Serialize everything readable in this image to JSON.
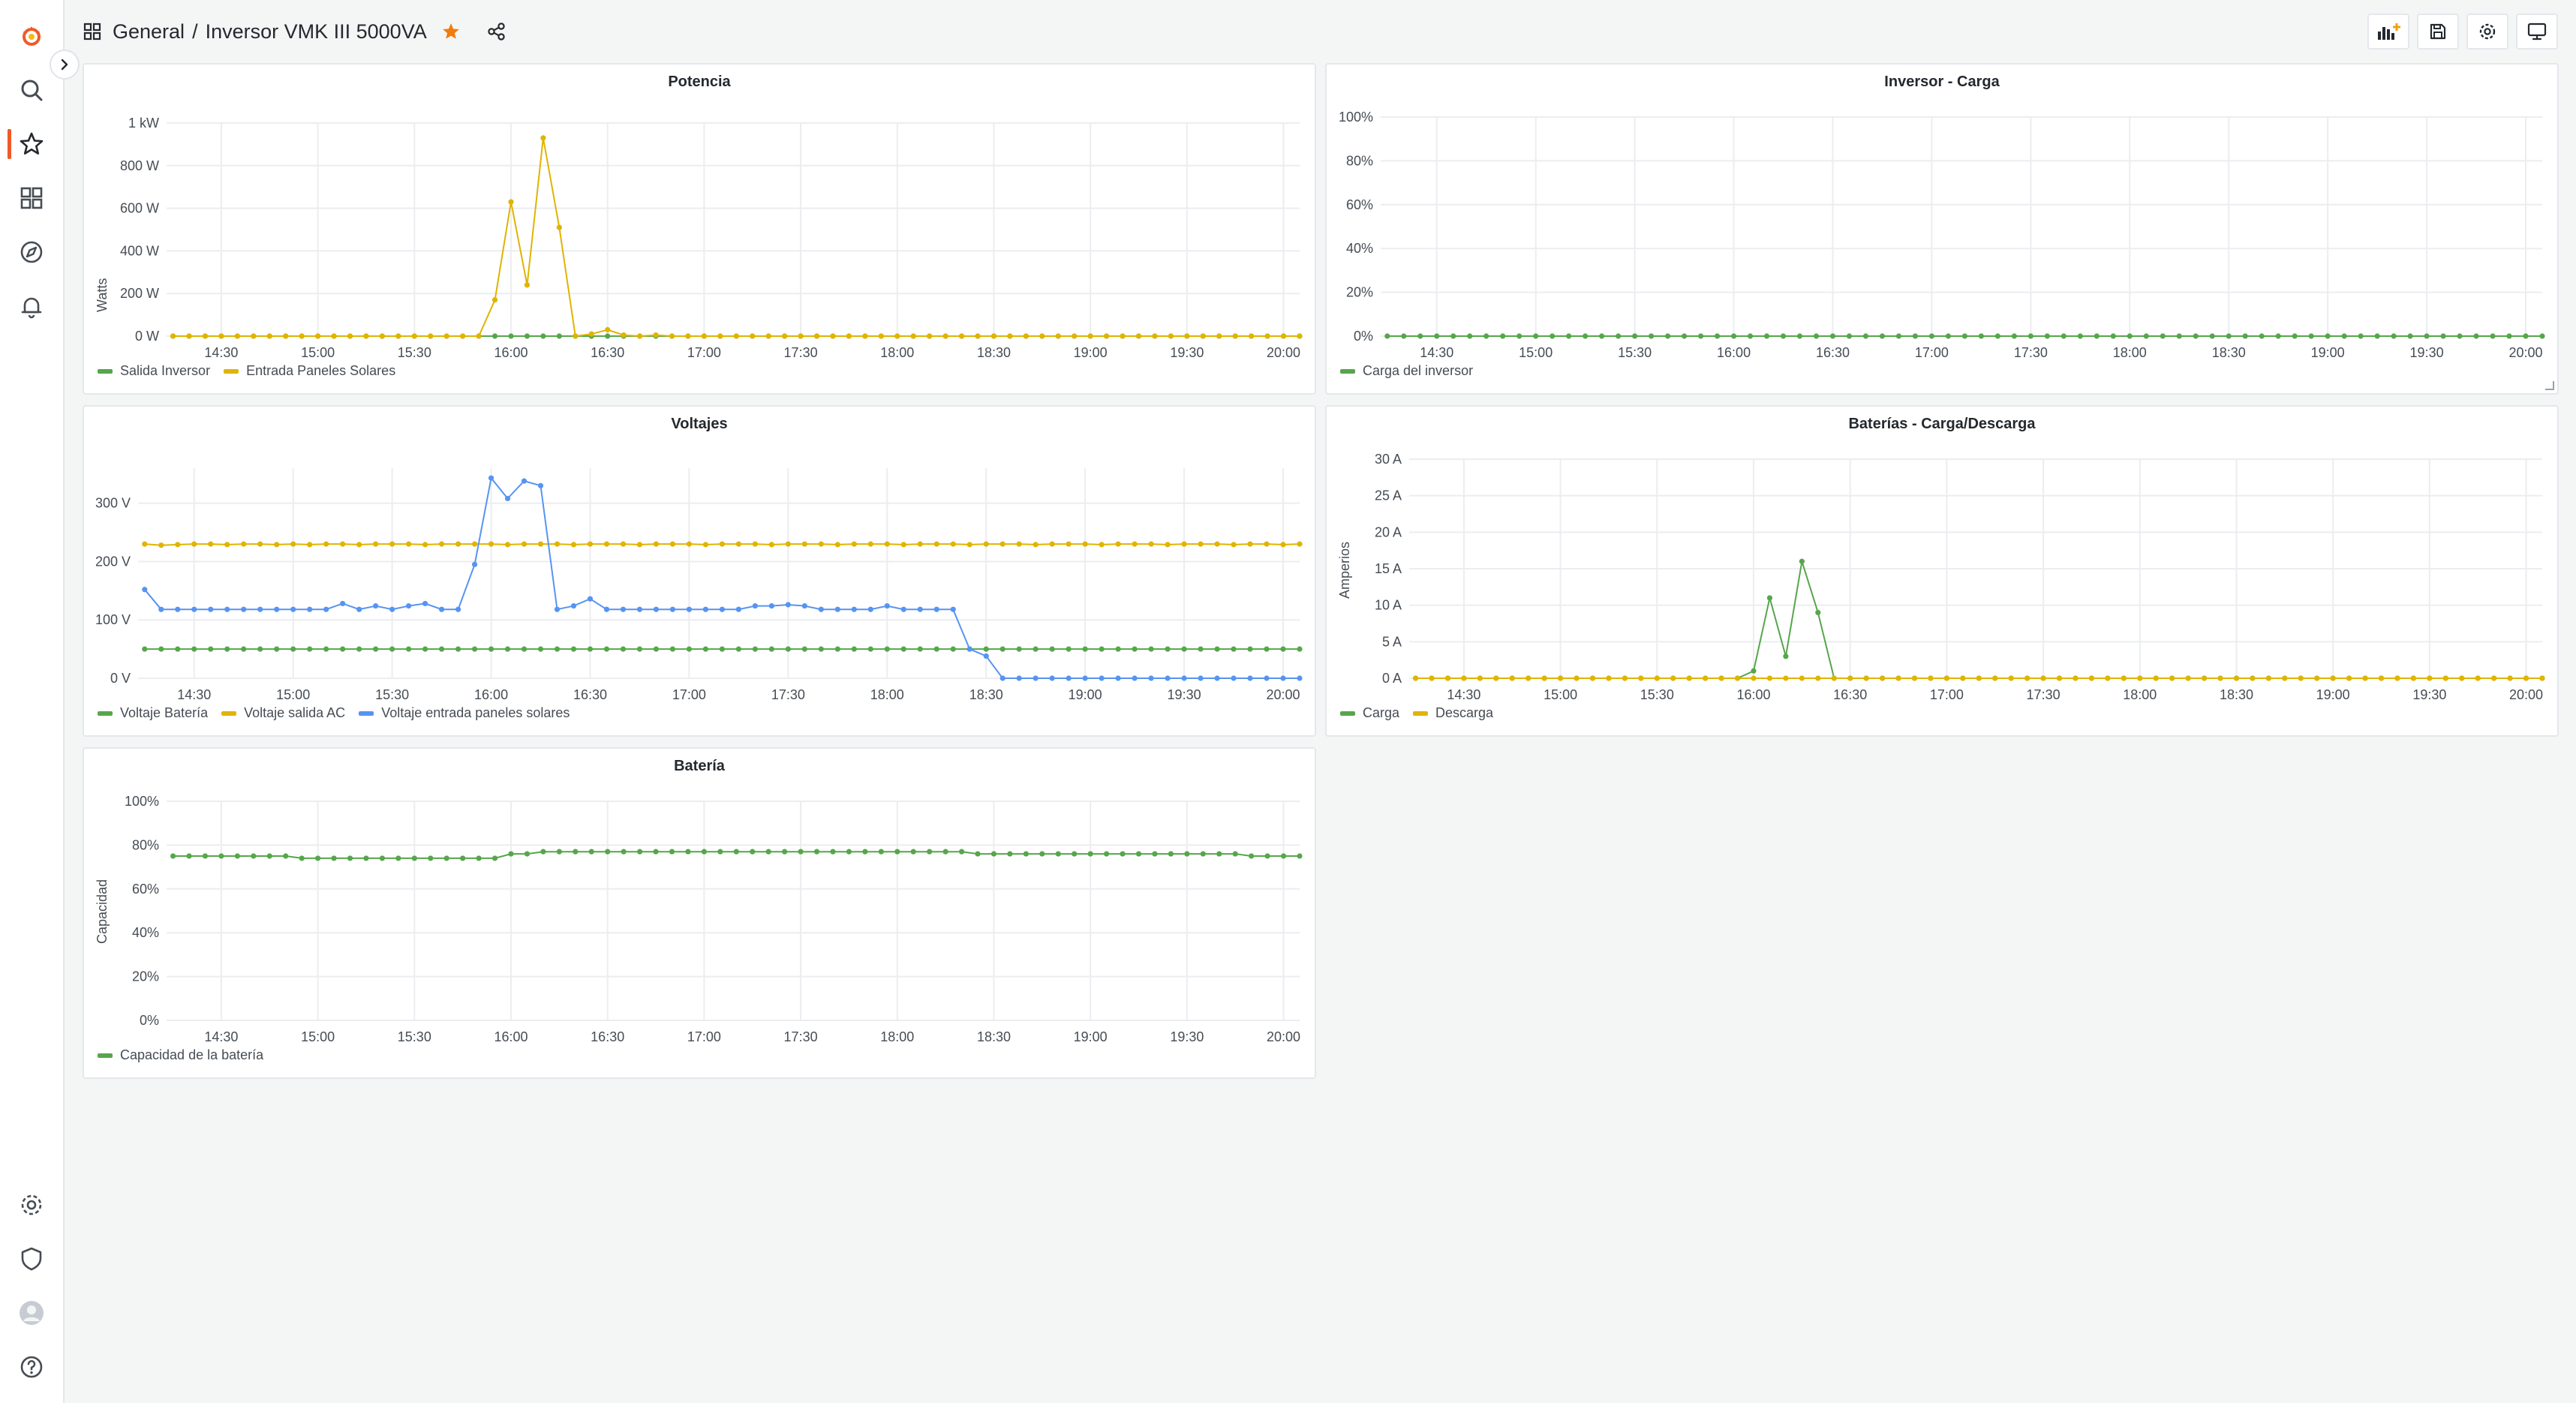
{
  "breadcrumb": {
    "folder": "General",
    "separator": "/",
    "dashboard": "Inversor VMK III 5000VA"
  },
  "sidebar": {
    "icons": [
      "grafana-logo-icon",
      "search-icon",
      "starred-icon",
      "dashboards-icon",
      "explore-icon",
      "alerting-icon",
      "configuration-icon",
      "server-admin-icon",
      "user-avatar-icon",
      "help-icon"
    ],
    "active": "starred-icon"
  },
  "toolbar": {
    "icons": [
      "add-panel-icon",
      "save-dashboard-icon",
      "dashboard-settings-icon",
      "tv-mode-icon"
    ]
  },
  "colors": {
    "green": "#56a64b",
    "yellow": "#e0b400",
    "blue": "#5794f2",
    "accent": "#f05a28",
    "star": "#f27b0e"
  },
  "panels": [
    {
      "id": "potencia",
      "title": "Potencia",
      "ylabel": "Watts",
      "legend": [
        {
          "name": "Salida Inversor",
          "color": "#56a64b"
        },
        {
          "name": "Entrada Paneles Solares",
          "color": "#e0b400"
        }
      ]
    },
    {
      "id": "carga",
      "title": "Inversor - Carga",
      "ylabel": "",
      "legend": [
        {
          "name": "Carga del inversor",
          "color": "#56a64b"
        }
      ]
    },
    {
      "id": "voltajes",
      "title": "Voltajes",
      "ylabel": "",
      "legend": [
        {
          "name": "Voltaje Batería",
          "color": "#56a64b"
        },
        {
          "name": "Voltaje salida AC",
          "color": "#e0b400"
        },
        {
          "name": "Voltaje entrada paneles solares",
          "color": "#5794f2"
        }
      ]
    },
    {
      "id": "baterias",
      "title": "Baterías - Carga/Descarga",
      "ylabel": "Amperios",
      "legend": [
        {
          "name": "Carga",
          "color": "#56a64b"
        },
        {
          "name": "Descarga",
          "color": "#e0b400"
        }
      ]
    },
    {
      "id": "bateria",
      "title": "Batería",
      "ylabel": "Capacidad",
      "legend": [
        {
          "name": "Capacidad de la batería",
          "color": "#56a64b"
        }
      ]
    }
  ],
  "chart_data": [
    {
      "panel": "potencia",
      "type": "line",
      "title": "Potencia",
      "ylabel": "Watts",
      "ylim": [
        0,
        1000
      ],
      "yticks": [
        0,
        200,
        400,
        600,
        800,
        1000
      ],
      "ytick_labels": [
        "0 W",
        "200 W",
        "400 W",
        "600 W",
        "800 W",
        "1 kW"
      ],
      "xlim": [
        "14:13",
        "20:05"
      ],
      "xtick_labels": [
        "14:30",
        "15:00",
        "15:30",
        "16:00",
        "16:30",
        "17:00",
        "17:30",
        "18:00",
        "18:30",
        "19:00",
        "19:30",
        "20:00"
      ],
      "grid": true,
      "legend_position": "bottom-left",
      "series": [
        {
          "name": "Salida Inversor",
          "color": "#56a64b",
          "start": "14:15",
          "step_min": 5,
          "values": [
            0,
            0,
            0,
            0,
            0,
            0,
            0,
            0,
            0,
            0,
            0,
            0,
            0,
            0,
            0,
            0,
            0,
            0,
            0,
            0,
            0,
            0,
            0,
            0,
            0,
            0,
            0,
            0,
            0,
            0,
            0,
            0,
            0,
            0,
            0,
            0,
            0,
            0,
            0,
            0,
            0,
            0,
            0,
            0,
            0,
            0,
            0,
            0,
            0,
            0,
            0,
            0,
            0,
            0,
            0,
            0,
            0,
            0,
            0,
            0,
            0,
            0,
            0,
            0,
            0,
            0,
            0,
            0,
            0,
            0,
            0,
            0
          ]
        },
        {
          "name": "Entrada Paneles Solares",
          "color": "#e0b400",
          "start": "14:15",
          "step_min": 5,
          "values": [
            0,
            0,
            0,
            0,
            0,
            0,
            0,
            0,
            0,
            0,
            0,
            0,
            0,
            0,
            0,
            0,
            0,
            0,
            0,
            0,
            170,
            630,
            240,
            930,
            510,
            0,
            10,
            30,
            5,
            0,
            5,
            0,
            0,
            0,
            0,
            0,
            0,
            0,
            0,
            0,
            0,
            0,
            0,
            0,
            0,
            0,
            0,
            0,
            0,
            0,
            0,
            0,
            0,
            0,
            0,
            0,
            0,
            0,
            0,
            0,
            0,
            0,
            0,
            0,
            0,
            0,
            0,
            0,
            0,
            0,
            0,
            0
          ]
        }
      ]
    },
    {
      "panel": "carga",
      "type": "line",
      "title": "Inversor - Carga",
      "ylim": [
        0,
        100
      ],
      "yticks": [
        0,
        20,
        40,
        60,
        80,
        100
      ],
      "ytick_labels": [
        "0%",
        "20%",
        "40%",
        "60%",
        "80%",
        "100%"
      ],
      "xlim": [
        "14:13",
        "20:05"
      ],
      "xtick_labels": [
        "14:30",
        "15:00",
        "15:30",
        "16:00",
        "16:30",
        "17:00",
        "17:30",
        "18:00",
        "18:30",
        "19:00",
        "19:30",
        "20:00"
      ],
      "grid": true,
      "legend_position": "bottom-left",
      "series": [
        {
          "name": "Carga del inversor",
          "color": "#56a64b",
          "start": "14:15",
          "step_min": 5,
          "values": [
            0,
            0,
            0,
            0,
            0,
            0,
            0,
            0,
            0,
            0,
            0,
            0,
            0,
            0,
            0,
            0,
            0,
            0,
            0,
            0,
            0,
            0,
            0,
            0,
            0,
            0,
            0,
            0,
            0,
            0,
            0,
            0,
            0,
            0,
            0,
            0,
            0,
            0,
            0,
            0,
            0,
            0,
            0,
            0,
            0,
            0,
            0,
            0,
            0,
            0,
            0,
            0,
            0,
            0,
            0,
            0,
            0,
            0,
            0,
            0,
            0,
            0,
            0,
            0,
            0,
            0,
            0,
            0,
            0,
            0,
            0,
            0
          ]
        }
      ]
    },
    {
      "panel": "voltajes",
      "type": "line",
      "title": "Voltajes",
      "ylim": [
        0,
        360
      ],
      "yticks": [
        0,
        100,
        200,
        300
      ],
      "ytick_labels": [
        "0 V",
        "100 V",
        "200 V",
        "300 V"
      ],
      "xlim": [
        "14:13",
        "20:05"
      ],
      "xtick_labels": [
        "14:30",
        "15:00",
        "15:30",
        "16:00",
        "16:30",
        "17:00",
        "17:30",
        "18:00",
        "18:30",
        "19:00",
        "19:30",
        "20:00"
      ],
      "grid": true,
      "legend_position": "bottom-left",
      "series": [
        {
          "name": "Voltaje Batería",
          "color": "#56a64b",
          "start": "14:15",
          "step_min": 5,
          "values": [
            50,
            50,
            50,
            50,
            50,
            50,
            50,
            50,
            50,
            50,
            50,
            50,
            50,
            50,
            50,
            50,
            50,
            50,
            50,
            50,
            50,
            50,
            50,
            50,
            50,
            50,
            50,
            50,
            50,
            50,
            50,
            50,
            50,
            50,
            50,
            50,
            50,
            50,
            50,
            50,
            50,
            50,
            50,
            50,
            50,
            50,
            50,
            50,
            50,
            50,
            50,
            50,
            50,
            50,
            50,
            50,
            50,
            50,
            50,
            50,
            50,
            50,
            50,
            50,
            50,
            50,
            50,
            50,
            50,
            50,
            50,
            50
          ]
        },
        {
          "name": "Voltaje salida AC",
          "color": "#e0b400",
          "start": "14:15",
          "step_min": 5,
          "values": [
            230,
            228,
            229,
            230,
            230,
            229,
            230,
            230,
            229,
            230,
            229,
            230,
            230,
            229,
            230,
            230,
            230,
            229,
            230,
            230,
            230,
            230,
            229,
            230,
            230,
            230,
            229,
            230,
            230,
            230,
            229,
            230,
            230,
            230,
            229,
            230,
            230,
            230,
            229,
            230,
            230,
            230,
            229,
            230,
            230,
            230,
            229,
            230,
            230,
            230,
            229,
            230,
            230,
            230,
            229,
            230,
            230,
            230,
            229,
            230,
            230,
            230,
            229,
            230,
            230,
            230,
            229,
            230,
            230,
            229,
            230,
            230
          ]
        },
        {
          "name": "Voltaje entrada paneles solares",
          "color": "#5794f2",
          "start": "14:10",
          "step_min": 5,
          "values": [
            130,
            152,
            118,
            118,
            118,
            118,
            118,
            118,
            118,
            118,
            118,
            118,
            118,
            128,
            118,
            124,
            118,
            124,
            128,
            118,
            118,
            195,
            343,
            308,
            338,
            330,
            118,
            124,
            136,
            118,
            118,
            118,
            118,
            118,
            118,
            118,
            118,
            118,
            124,
            124,
            126,
            124,
            118,
            118,
            118,
            118,
            124,
            118,
            118,
            118,
            118,
            50,
            38,
            0,
            0,
            0,
            0,
            0,
            0,
            0,
            0,
            0,
            0,
            0,
            0,
            0,
            0,
            0,
            0,
            0,
            0,
            0,
            0,
            0
          ]
        }
      ]
    },
    {
      "panel": "baterias",
      "type": "line",
      "title": "Baterías - Carga/Descarga",
      "ylabel": "Amperios",
      "ylim": [
        0,
        30
      ],
      "yticks": [
        0,
        5,
        10,
        15,
        20,
        25,
        30
      ],
      "ytick_labels": [
        "0 A",
        "5 A",
        "10 A",
        "15 A",
        "20 A",
        "25 A",
        "30 A"
      ],
      "xlim": [
        "14:13",
        "20:05"
      ],
      "xtick_labels": [
        "14:30",
        "15:00",
        "15:30",
        "16:00",
        "16:30",
        "17:00",
        "17:30",
        "18:00",
        "18:30",
        "19:00",
        "19:30",
        "20:00"
      ],
      "grid": true,
      "legend_position": "bottom-left",
      "series": [
        {
          "name": "Carga",
          "color": "#56a64b",
          "start": "14:15",
          "step_min": 5,
          "values": [
            0,
            0,
            0,
            0,
            0,
            0,
            0,
            0,
            0,
            0,
            0,
            0,
            0,
            0,
            0,
            0,
            0,
            0,
            0,
            0,
            0,
            1,
            11,
            3,
            16,
            9,
            0,
            0,
            0,
            0,
            0,
            0,
            0,
            0,
            0,
            0,
            0,
            0,
            0,
            0,
            0,
            0,
            0,
            0,
            0,
            0,
            0,
            0,
            0,
            0,
            0,
            0,
            0,
            0,
            0,
            0,
            0,
            0,
            0,
            0,
            0,
            0,
            0,
            0,
            0,
            0,
            0,
            0,
            0,
            0,
            0,
            0
          ]
        },
        {
          "name": "Descarga",
          "color": "#e0b400",
          "start": "14:15",
          "step_min": 5,
          "values": [
            0,
            0,
            0,
            0,
            0,
            0,
            0,
            0,
            0,
            0,
            0,
            0,
            0,
            0,
            0,
            0,
            0,
            0,
            0,
            0,
            0,
            0,
            0,
            0,
            0,
            0,
            0,
            0,
            0,
            0,
            0,
            0,
            0,
            0,
            0,
            0,
            0,
            0,
            0,
            0,
            0,
            0,
            0,
            0,
            0,
            0,
            0,
            0,
            0,
            0,
            0,
            0,
            0,
            0,
            0,
            0,
            0,
            0,
            0,
            0,
            0,
            0,
            0,
            0,
            0,
            0,
            0,
            0,
            0,
            0,
            0,
            0
          ]
        }
      ]
    },
    {
      "panel": "bateria",
      "type": "line",
      "title": "Batería",
      "ylabel": "Capacidad",
      "ylim": [
        0,
        100
      ],
      "yticks": [
        0,
        20,
        40,
        60,
        80,
        100
      ],
      "ytick_labels": [
        "0%",
        "20%",
        "40%",
        "60%",
        "80%",
        "100%"
      ],
      "xlim": [
        "14:13",
        "20:05"
      ],
      "xtick_labels": [
        "14:30",
        "15:00",
        "15:30",
        "16:00",
        "16:30",
        "17:00",
        "17:30",
        "18:00",
        "18:30",
        "19:00",
        "19:30",
        "20:00"
      ],
      "grid": true,
      "legend_position": "bottom-left",
      "series": [
        {
          "name": "Capacidad de la batería",
          "color": "#56a64b",
          "start": "14:15",
          "step_min": 5,
          "values": [
            75,
            75,
            75,
            75,
            75,
            75,
            75,
            75,
            74,
            74,
            74,
            74,
            74,
            74,
            74,
            74,
            74,
            74,
            74,
            74,
            74,
            76,
            76,
            77,
            77,
            77,
            77,
            77,
            77,
            77,
            77,
            77,
            77,
            77,
            77,
            77,
            77,
            77,
            77,
            77,
            77,
            77,
            77,
            77,
            77,
            77,
            77,
            77,
            77,
            77,
            76,
            76,
            76,
            76,
            76,
            76,
            76,
            76,
            76,
            76,
            76,
            76,
            76,
            76,
            76,
            76,
            76,
            75,
            75,
            75,
            75,
            75
          ]
        }
      ]
    }
  ]
}
